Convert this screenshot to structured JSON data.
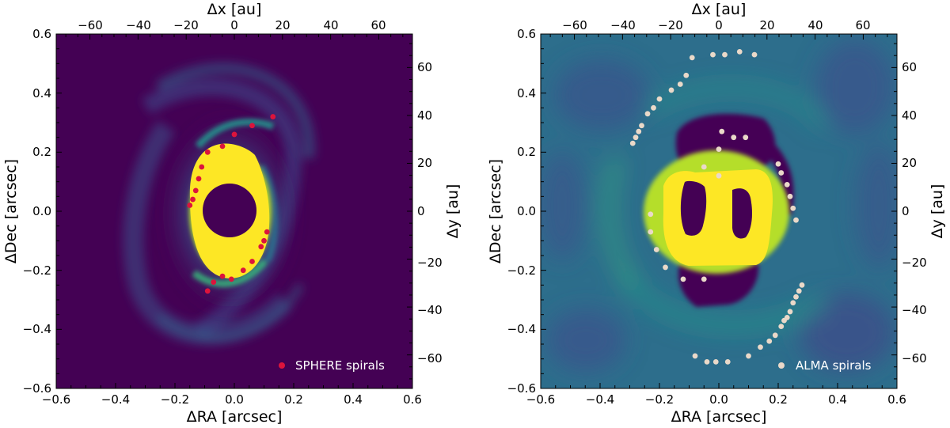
{
  "chart_data": [
    {
      "type": "scatter",
      "panel": "left",
      "background": "image",
      "xlabel": "ΔRA [arcsec]",
      "ylabel": "ΔDec [arcsec]",
      "top_xlabel": "Δx [au]",
      "right_ylabel": "Δy [au]",
      "xlim": [
        -0.6,
        0.6
      ],
      "ylim": [
        -0.6,
        0.6
      ],
      "au_lim": [
        -74,
        74
      ],
      "x_ticks": [
        "−0.6",
        "−0.4",
        "−0.2",
        "0.0",
        "0.2",
        "0.4",
        "0.6"
      ],
      "y_ticks": [
        "−0.6",
        "−0.4",
        "−0.2",
        "0.0",
        "0.2",
        "0.4",
        "0.6"
      ],
      "top_ticks": [
        "−60",
        "−40",
        "−20",
        "0",
        "20",
        "40",
        "60"
      ],
      "right_ticks": [
        "−60",
        "−40",
        "−20",
        "0",
        "20",
        "40",
        "60"
      ],
      "legend_position": "bottom-right",
      "series": [
        {
          "name": "SPHERE spirals",
          "color": "#dc143c",
          "x": [
            0.13,
            0.06,
            0.0,
            -0.04,
            -0.09,
            -0.11,
            -0.12,
            -0.13,
            -0.14,
            -0.15,
            0.11,
            0.1,
            0.09,
            0.06,
            0.03,
            -0.01,
            -0.04,
            -0.07,
            -0.09
          ],
          "y": [
            0.32,
            0.29,
            0.26,
            0.22,
            0.2,
            0.15,
            0.11,
            0.07,
            0.04,
            0.02,
            -0.07,
            -0.1,
            -0.12,
            -0.17,
            -0.2,
            -0.23,
            -0.22,
            -0.24,
            -0.27
          ]
        }
      ]
    },
    {
      "type": "scatter",
      "panel": "right",
      "background": "image",
      "xlabel": "ΔRA [arcsec]",
      "ylabel": "ΔDec [arcsec]",
      "top_xlabel": "Δx [au]",
      "right_ylabel": "Δy [au]",
      "xlim": [
        -0.6,
        0.6
      ],
      "ylim": [
        -0.6,
        0.6
      ],
      "au_lim": [
        -74,
        74
      ],
      "x_ticks": [
        "−0.6",
        "−0.4",
        "−0.2",
        "0.0",
        "0.2",
        "0.4",
        "0.6"
      ],
      "y_ticks": [
        "−0.6",
        "−0.4",
        "−0.2",
        "0.0",
        "0.2",
        "0.4",
        "0.6"
      ],
      "top_ticks": [
        "−60",
        "−40",
        "−20",
        "0",
        "20",
        "40",
        "60"
      ],
      "right_ticks": [
        "−60",
        "−40",
        "−20",
        "0",
        "20",
        "40",
        "60"
      ],
      "legend_position": "bottom-right",
      "series": [
        {
          "name": "ALMA spirals",
          "color": "#ead9c9",
          "x": [
            0.12,
            0.07,
            0.02,
            -0.02,
            -0.09,
            -0.11,
            -0.13,
            -0.16,
            -0.2,
            -0.22,
            -0.24,
            -0.26,
            -0.27,
            -0.28,
            -0.29,
            -0.23,
            -0.23,
            -0.21,
            -0.18,
            -0.12,
            -0.05,
            0.01,
            0.05,
            0.09,
            0.0,
            -0.05,
            0.0,
            0.2,
            0.21,
            0.23,
            0.24,
            0.25,
            0.26,
            0.28,
            0.27,
            0.26,
            0.25,
            0.24,
            0.23,
            0.22,
            0.21,
            0.19,
            0.17,
            0.14,
            0.1,
            0.03,
            -0.01,
            -0.04,
            -0.08
          ],
          "y": [
            0.53,
            0.54,
            0.53,
            0.53,
            0.52,
            0.46,
            0.43,
            0.41,
            0.38,
            0.35,
            0.33,
            0.29,
            0.27,
            0.25,
            0.23,
            -0.01,
            -0.07,
            -0.13,
            -0.19,
            -0.23,
            -0.23,
            0.27,
            0.25,
            0.25,
            0.21,
            0.15,
            0.12,
            0.16,
            0.13,
            0.09,
            0.05,
            0.01,
            -0.03,
            -0.25,
            -0.27,
            -0.29,
            -0.31,
            -0.34,
            -0.36,
            -0.37,
            -0.39,
            -0.42,
            -0.44,
            -0.46,
            -0.49,
            -0.51,
            -0.51,
            -0.51,
            -0.49
          ]
        }
      ]
    }
  ]
}
